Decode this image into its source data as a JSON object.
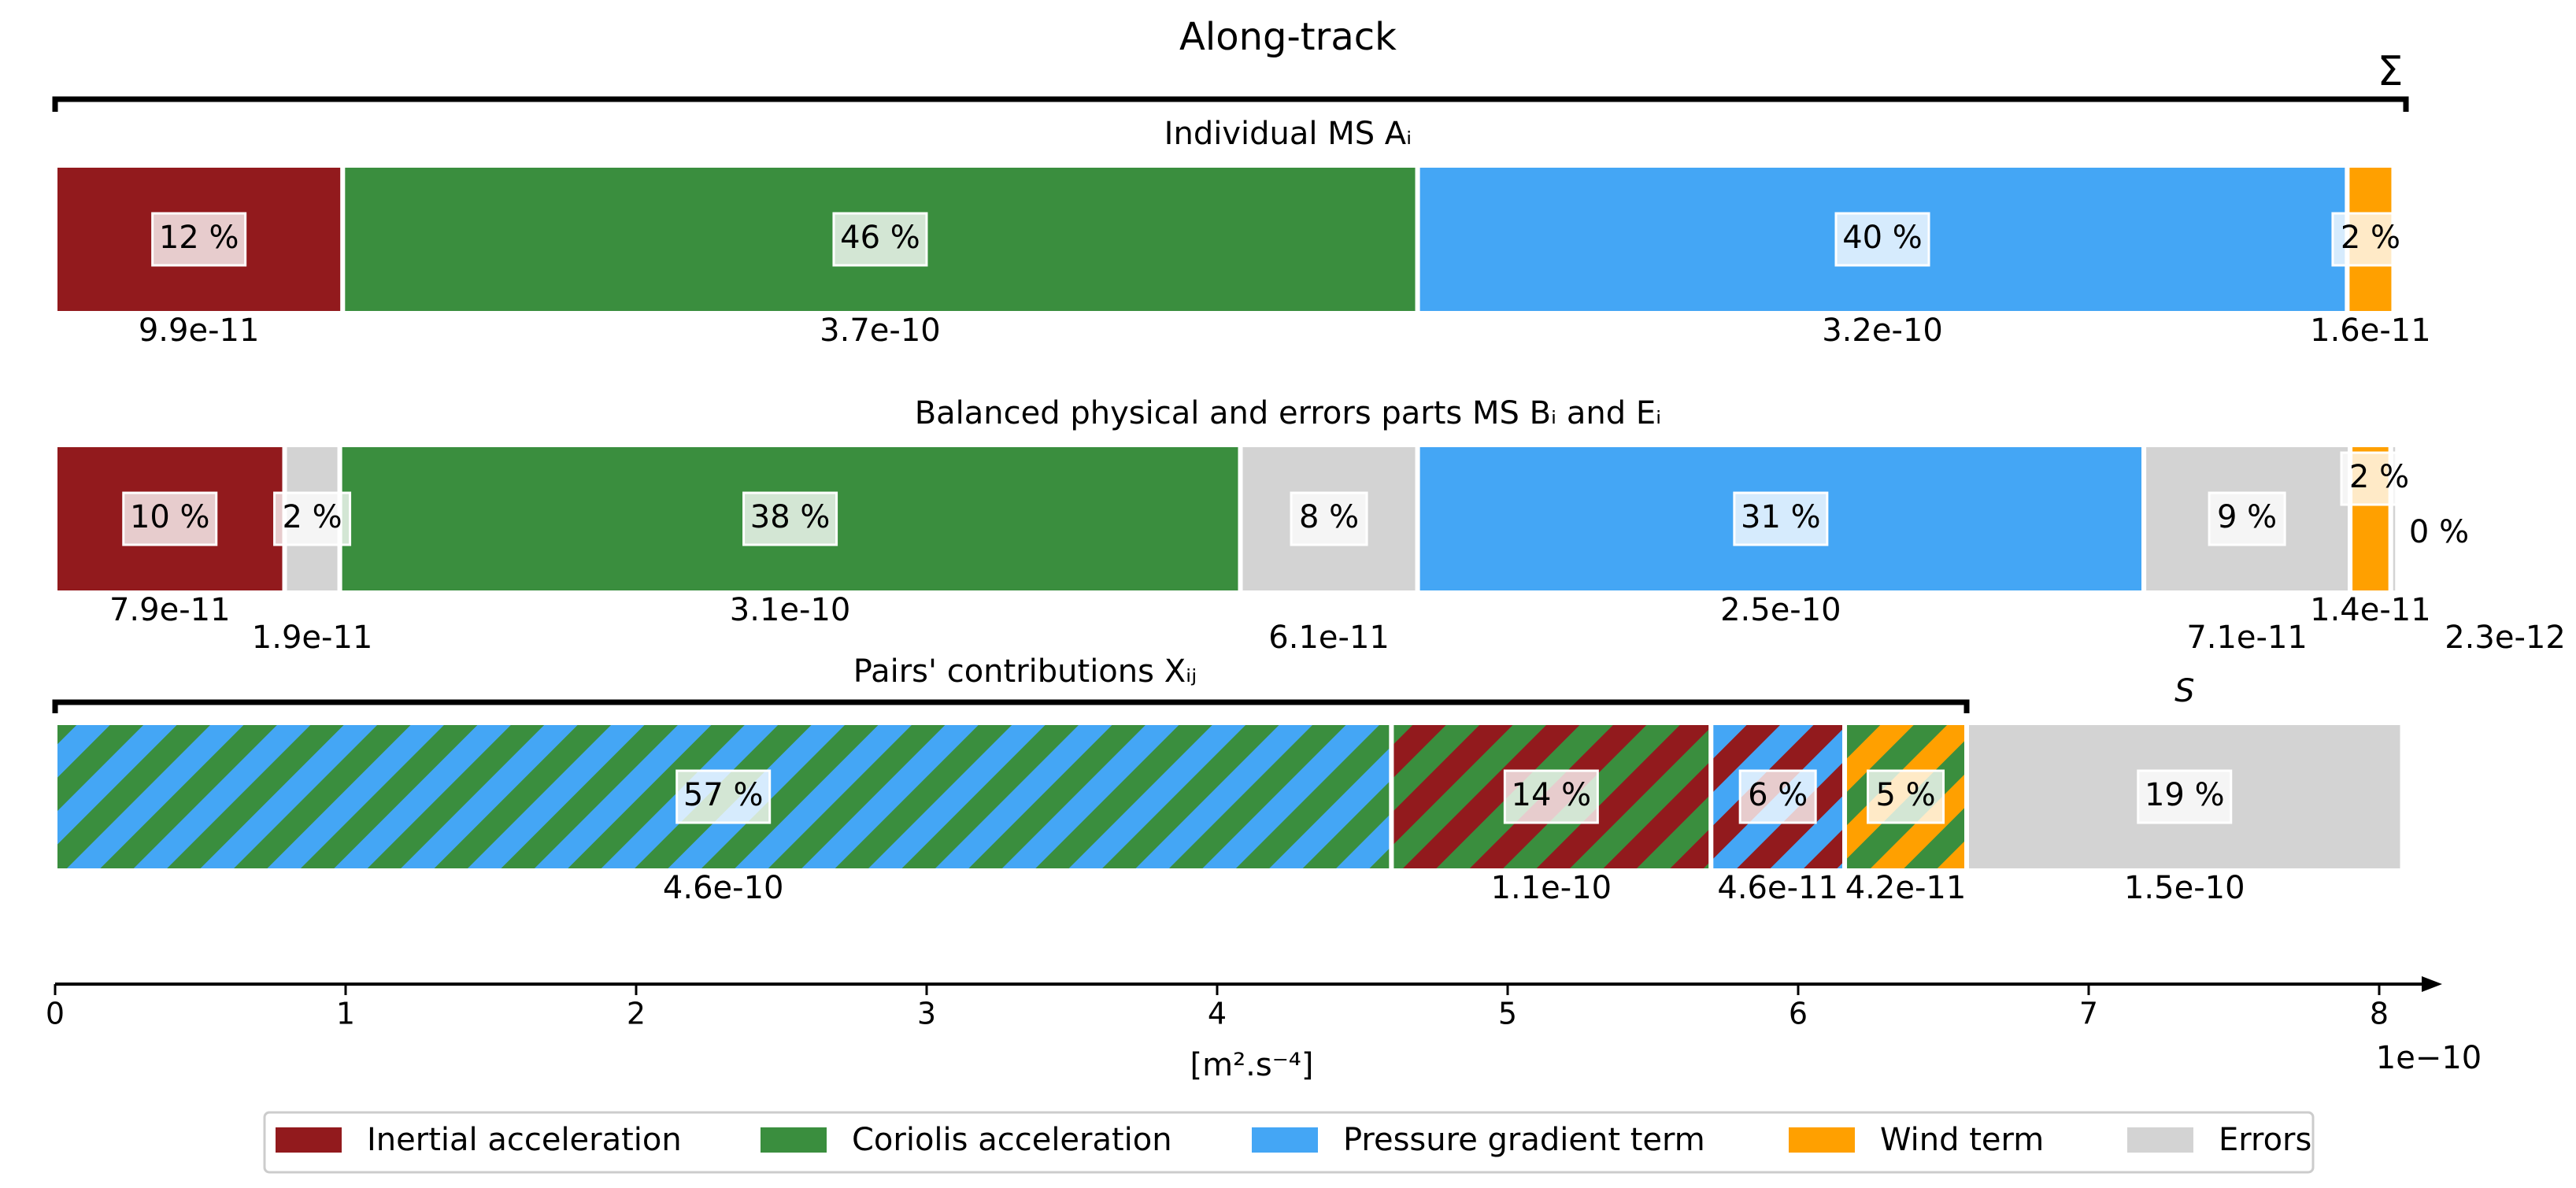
{
  "chart_data": {
    "type": "bar",
    "title": "Along-track",
    "sum_label": "Σ",
    "xlabel": "[m².s⁻⁴]",
    "x_scale_label": "1e−10",
    "xlim": [
      0,
      8.2
    ],
    "xticks": [
      "0",
      "1",
      "2",
      "3",
      "4",
      "5",
      "6",
      "7",
      "8"
    ],
    "grid": false,
    "legend_position": "bottom",
    "colors": {
      "inertial": "#921a1d",
      "coriolis": "#3a8e3e",
      "pressure": "#44a6f5",
      "wind": "#ffa000",
      "errors": "#d3d3d3"
    },
    "legend": [
      {
        "key": "inertial",
        "label": "Inertial acceleration"
      },
      {
        "key": "coriolis",
        "label": "Coriolis acceleration"
      },
      {
        "key": "pressure",
        "label": "Pressure gradient term"
      },
      {
        "key": "wind",
        "label": "Wind term"
      },
      {
        "key": "errors",
        "label": "Errors"
      }
    ],
    "rows": [
      {
        "label": "Individual MS Aᵢ",
        "segments": [
          {
            "colors": [
              "inertial"
            ],
            "value": 0.99,
            "pct": "12 %",
            "val_label": "9.9e-11"
          },
          {
            "colors": [
              "coriolis"
            ],
            "value": 3.7,
            "pct": "46 %",
            "val_label": "3.7e-10"
          },
          {
            "colors": [
              "pressure"
            ],
            "value": 3.2,
            "pct": "40 %",
            "val_label": "3.2e-10"
          },
          {
            "colors": [
              "wind"
            ],
            "value": 0.16,
            "pct": "2 %",
            "val_label": "1.6e-11"
          }
        ]
      },
      {
        "label": "Balanced physical and errors parts MS Bᵢ and Eᵢ",
        "segments": [
          {
            "colors": [
              "inertial"
            ],
            "value": 0.79,
            "pct": "10 %",
            "val_label": "7.9e-11"
          },
          {
            "colors": [
              "errors"
            ],
            "value": 0.19,
            "pct": "2 %",
            "val_label": "1.9e-11"
          },
          {
            "colors": [
              "coriolis"
            ],
            "value": 3.1,
            "pct": "38 %",
            "val_label": "3.1e-10"
          },
          {
            "colors": [
              "errors"
            ],
            "value": 0.61,
            "pct": "8 %",
            "val_label": "6.1e-11"
          },
          {
            "colors": [
              "pressure"
            ],
            "value": 2.5,
            "pct": "31 %",
            "val_label": "2.5e-10"
          },
          {
            "colors": [
              "errors"
            ],
            "value": 0.71,
            "pct": "9 %",
            "val_label": "7.1e-11"
          },
          {
            "colors": [
              "wind"
            ],
            "value": 0.14,
            "pct": "2 %",
            "val_label": "1.4e-11"
          },
          {
            "colors": [
              "errors"
            ],
            "value": 0.023,
            "pct": "0 %",
            "val_label": "2.3e-12"
          }
        ]
      },
      {
        "label": "Pairs' contributions Xᵢⱼ",
        "s_label": "S",
        "segments": [
          {
            "colors": [
              "pressure",
              "coriolis"
            ],
            "value": 4.6,
            "pct": "57 %",
            "val_label": "4.6e-10"
          },
          {
            "colors": [
              "inertial",
              "coriolis"
            ],
            "value": 1.1,
            "pct": "14 %",
            "val_label": "1.1e-10"
          },
          {
            "colors": [
              "inertial",
              "pressure"
            ],
            "value": 0.46,
            "pct": "6 %",
            "val_label": "4.6e-11"
          },
          {
            "colors": [
              "wind",
              "coriolis"
            ],
            "value": 0.42,
            "pct": "5 %",
            "val_label": "4.2e-11"
          },
          {
            "colors": [
              "errors"
            ],
            "value": 1.5,
            "pct": "19 %",
            "val_label": "1.5e-10"
          }
        ]
      }
    ]
  }
}
